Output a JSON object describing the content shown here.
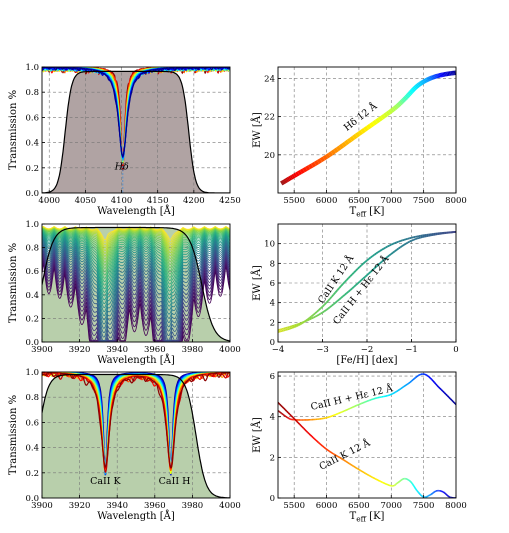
{
  "chart_data": [
    {
      "type": "line",
      "panel": "top-left",
      "xlabel": "Wavelength [Å]",
      "ylabel": "Transmission %",
      "xlim": [
        3990,
        4250
      ],
      "ylim": [
        0.0,
        1.0
      ],
      "xticks": [
        "4000",
        "4050",
        "4100",
        "4150",
        "4200",
        "4250"
      ],
      "yticks": [
        "0.0",
        "0.2",
        "0.4",
        "0.6",
        "0.8",
        "1.0"
      ],
      "grid": true,
      "fill_color": "#b0a3a3",
      "annotation": "Hδ",
      "line_center": 4101.7,
      "filter": {
        "name": "Hδ 12 Å"
      },
      "spectra": {
        "count": 16,
        "colormap": "jet",
        "min_transmission_range": [
          0.22,
          0.3
        ]
      }
    },
    {
      "type": "line",
      "panel": "top-right",
      "xlabel": "T",
      "xlabel_sub": "eff",
      "xlabel_unit": " [K]",
      "ylabel": "EW [Å]",
      "xlim": [
        5250,
        8000
      ],
      "ylim": [
        18,
        24.6
      ],
      "xticks": [
        "5500",
        "6000",
        "6500",
        "7000",
        "7500",
        "8000"
      ],
      "yticks": [
        "20",
        "22",
        "24"
      ],
      "grid": true,
      "series": [
        {
          "name": "Hδ 12 Å",
          "x": [
            5300,
            5500,
            6000,
            6500,
            7000,
            7200,
            7400,
            7600,
            7800,
            8000
          ],
          "y": [
            18.5,
            18.9,
            19.9,
            21.1,
            22.3,
            22.9,
            23.6,
            24.0,
            24.2,
            24.3
          ]
        }
      ]
    },
    {
      "type": "line",
      "panel": "middle-left",
      "xlabel": "Wavelength [Å]",
      "ylabel": "Transmission %",
      "xlim": [
        3900,
        4000
      ],
      "ylim": [
        0.0,
        1.0
      ],
      "xticks": [
        "3900",
        "3920",
        "3940",
        "3960",
        "3980",
        "4000"
      ],
      "yticks": [
        "0.0",
        "0.2",
        "0.4",
        "0.6",
        "0.8",
        "1.0"
      ],
      "grid": true,
      "fill_color": "#b8cfab",
      "spectra": {
        "count": 42,
        "colormap": "viridis",
        "line_centers": [
          3933.7,
          3968.5
        ]
      }
    },
    {
      "type": "line",
      "panel": "middle-right",
      "xlabel": "[Fe/H] [dex]",
      "ylabel": "EW [Å]",
      "xlim": [
        -4,
        0
      ],
      "ylim": [
        0,
        12
      ],
      "xticks": [
        "−4",
        "−3",
        "−2",
        "−1",
        "0"
      ],
      "yticks": [
        "0",
        "2",
        "4",
        "6",
        "8",
        "10"
      ],
      "grid": true,
      "series": [
        {
          "name": "CaII K 12 Å",
          "x": [
            -4.0,
            -3.5,
            -3.0,
            -2.5,
            -2.0,
            -1.5,
            -1.0,
            -0.5,
            0.0
          ],
          "y": [
            1.0,
            1.8,
            3.6,
            6.1,
            8.3,
            9.8,
            10.6,
            11.0,
            11.2
          ]
        },
        {
          "name": "CaII H + Hε 12 Å",
          "x": [
            -4.0,
            -3.5,
            -3.0,
            -2.5,
            -2.0,
            -1.5,
            -1.0,
            -0.5,
            0.0
          ],
          "y": [
            1.2,
            1.9,
            3.0,
            4.8,
            6.8,
            8.8,
            10.3,
            10.9,
            11.2
          ]
        }
      ]
    },
    {
      "type": "line",
      "panel": "bottom-left",
      "xlabel": "Wavelength [Å]",
      "ylabel": "Transmission %",
      "xlim": [
        3900,
        4000
      ],
      "ylim": [
        0.0,
        1.0
      ],
      "xticks": [
        "3900",
        "3920",
        "3940",
        "3960",
        "3980",
        "4000"
      ],
      "yticks": [
        "0.0",
        "0.2",
        "0.4",
        "0.6",
        "0.8",
        "1.0"
      ],
      "grid": true,
      "fill_color": "#b8cfab",
      "annotations": [
        "CaII K",
        "CaII H"
      ],
      "line_centers": [
        3933.7,
        3968.5
      ],
      "spectra": {
        "count": 16,
        "colormap": "jet",
        "min_transmission_range": [
          0.18,
          0.25
        ]
      }
    },
    {
      "type": "line",
      "panel": "bottom-right",
      "xlabel": "T",
      "xlabel_sub": "eff",
      "xlabel_unit": " [K]",
      "ylabel": "EW [Å]",
      "xlim": [
        5250,
        8000
      ],
      "ylim": [
        0,
        6.2
      ],
      "xticks": [
        "5500",
        "6000",
        "6500",
        "7000",
        "7500",
        "8000"
      ],
      "yticks": [
        "0",
        "2",
        "4",
        "6"
      ],
      "grid": true,
      "series": [
        {
          "name": "CaII H + Hε 12 Å",
          "x": [
            5250,
            5400,
            5500,
            5750,
            6000,
            6250,
            6500,
            6750,
            7000,
            7250,
            7500,
            7750,
            8000
          ],
          "y": [
            4.3,
            3.95,
            3.85,
            3.85,
            3.95,
            4.25,
            4.6,
            4.9,
            5.1,
            5.6,
            6.1,
            5.4,
            4.6
          ]
        },
        {
          "name": "CaII K 12 Å",
          "x": [
            5250,
            5500,
            5750,
            6000,
            6250,
            6500,
            6750,
            7000,
            7100,
            7200,
            7300,
            7400,
            7500,
            7600,
            7700,
            7800,
            7900,
            8000
          ],
          "y": [
            4.7,
            3.9,
            3.1,
            2.4,
            1.9,
            1.4,
            0.95,
            0.6,
            0.75,
            0.95,
            0.8,
            0.35,
            0.05,
            0.15,
            0.35,
            0.3,
            0.05,
            0.0
          ]
        }
      ]
    }
  ]
}
